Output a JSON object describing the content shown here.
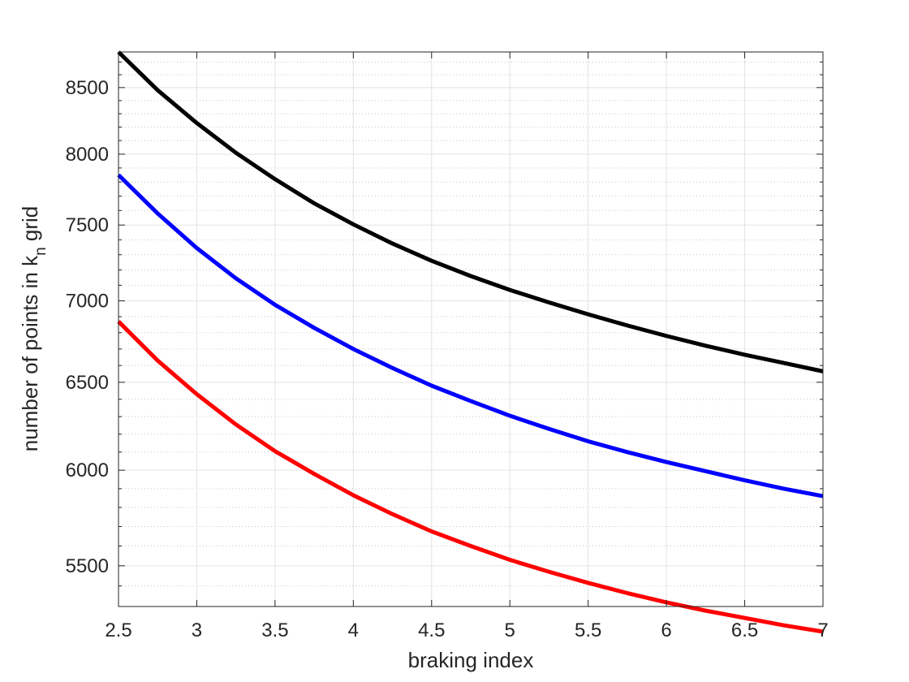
{
  "chart_data": {
    "type": "line",
    "title": "",
    "xlabel": "braking index",
    "ylabel": {
      "prefix": "number of points in k",
      "subscript": "n",
      "suffix": " grid"
    },
    "xlim": [
      2.5,
      7
    ],
    "ylim": [
      5300,
      8780
    ],
    "yscale": "log",
    "grid": true,
    "minor_grid": true,
    "xticks": [
      2.5,
      3,
      3.5,
      4,
      4.5,
      5,
      5.5,
      6,
      6.5,
      7
    ],
    "xtick_labels": [
      "2.5",
      "3",
      "3.5",
      "4",
      "4.5",
      "5",
      "5.5",
      "6",
      "6.5",
      "7"
    ],
    "yticks": [
      5500,
      6000,
      6500,
      7000,
      7500,
      8000,
      8500
    ],
    "ytick_labels": [
      "5500",
      "6000",
      "6500",
      "7000",
      "7500",
      "8000",
      "8500"
    ],
    "x": [
      2.5,
      2.75,
      3,
      3.25,
      3.5,
      3.75,
      4,
      4.25,
      4.5,
      4.75,
      5,
      5.25,
      5.5,
      5.75,
      6,
      6.25,
      6.5,
      6.75,
      7
    ],
    "series": [
      {
        "color": "#000000",
        "values": [
          8780,
          8480,
          8230,
          8010,
          7820,
          7650,
          7505,
          7375,
          7260,
          7160,
          7070,
          6990,
          6915,
          6845,
          6780,
          6720,
          6665,
          6615,
          6565
        ]
      },
      {
        "color": "#0000ff",
        "values": [
          7850,
          7580,
          7345,
          7145,
          6975,
          6830,
          6700,
          6585,
          6480,
          6390,
          6305,
          6230,
          6160,
          6100,
          6045,
          5995,
          5945,
          5900,
          5860
        ]
      },
      {
        "color": "#ff0000",
        "values": [
          6870,
          6630,
          6430,
          6255,
          6105,
          5980,
          5865,
          5765,
          5675,
          5600,
          5530,
          5470,
          5415,
          5365,
          5320,
          5280,
          5245,
          5210,
          5180
        ]
      }
    ]
  }
}
